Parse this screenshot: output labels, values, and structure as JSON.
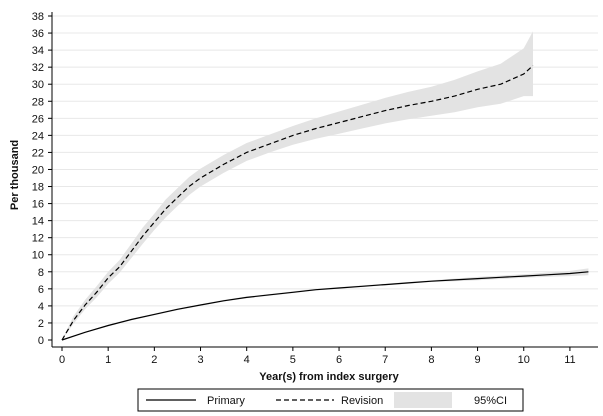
{
  "chart_data": {
    "type": "line",
    "xlabel": "Year(s) from index surgery",
    "ylabel": "Per thousand",
    "xlim": [
      0,
      11.5
    ],
    "ylim": [
      0,
      38
    ],
    "x_ticks": [
      0,
      1,
      2,
      3,
      4,
      5,
      6,
      7,
      8,
      9,
      10,
      11
    ],
    "y_ticks": [
      0,
      2,
      4,
      6,
      8,
      10,
      12,
      14,
      16,
      18,
      20,
      22,
      24,
      26,
      28,
      30,
      32,
      34,
      36,
      38
    ],
    "grid": "horizontal",
    "legend_position": "bottom",
    "series": [
      {
        "name": "Primary",
        "style": "solid",
        "color": "#000000",
        "x": [
          0,
          0.5,
          1,
          1.5,
          2,
          2.5,
          3,
          3.5,
          4,
          4.5,
          5,
          5.5,
          6,
          6.5,
          7,
          7.5,
          8,
          8.5,
          9,
          9.5,
          10,
          10.5,
          11,
          11.4
        ],
        "y": [
          0,
          0.9,
          1.7,
          2.4,
          3.0,
          3.6,
          4.1,
          4.6,
          5.0,
          5.3,
          5.6,
          5.9,
          6.1,
          6.3,
          6.5,
          6.7,
          6.9,
          7.05,
          7.2,
          7.35,
          7.5,
          7.65,
          7.8,
          8.0
        ],
        "ci_low": [
          0,
          0.85,
          1.6,
          2.3,
          2.9,
          3.5,
          4.0,
          4.5,
          4.9,
          5.2,
          5.5,
          5.8,
          6.0,
          6.2,
          6.4,
          6.6,
          6.8,
          6.9,
          7.0,
          7.15,
          7.3,
          7.4,
          7.5,
          7.6
        ],
        "ci_high": [
          0,
          0.95,
          1.8,
          2.5,
          3.1,
          3.7,
          4.2,
          4.7,
          5.1,
          5.4,
          5.7,
          6.0,
          6.2,
          6.4,
          6.6,
          6.8,
          7.0,
          7.2,
          7.4,
          7.55,
          7.7,
          7.9,
          8.1,
          8.4
        ]
      },
      {
        "name": "Revision",
        "style": "dashed",
        "color": "#000000",
        "x": [
          0,
          0.25,
          0.5,
          0.75,
          1,
          1.25,
          1.5,
          1.75,
          2,
          2.25,
          2.5,
          2.75,
          3,
          3.5,
          4,
          4.5,
          5,
          5.5,
          6,
          6.5,
          7,
          7.5,
          8,
          8.5,
          9,
          9.5,
          10,
          10.2
        ],
        "y": [
          0,
          2.3,
          4.1,
          5.6,
          7.3,
          8.6,
          10.4,
          12.2,
          13.8,
          15.4,
          16.7,
          18.0,
          19.0,
          20.6,
          22.0,
          23.0,
          24.0,
          24.8,
          25.5,
          26.2,
          26.9,
          27.5,
          28.0,
          28.6,
          29.4,
          30.0,
          31.2,
          32.2
        ],
        "ci_low": [
          0,
          1.9,
          3.6,
          5.0,
          6.6,
          7.9,
          9.6,
          11.3,
          12.9,
          14.4,
          15.7,
          17.0,
          18.0,
          19.6,
          21.0,
          22.0,
          22.9,
          23.6,
          24.2,
          24.8,
          25.4,
          25.9,
          26.3,
          26.7,
          27.3,
          27.7,
          28.6,
          28.6
        ],
        "ci_high": [
          0,
          2.8,
          4.7,
          6.3,
          8.0,
          9.4,
          11.3,
          13.2,
          14.8,
          16.5,
          17.8,
          19.1,
          20.1,
          21.7,
          23.1,
          24.1,
          25.1,
          26.0,
          26.8,
          27.6,
          28.4,
          29.1,
          29.7,
          30.5,
          31.5,
          32.4,
          34.2,
          36.2
        ]
      }
    ],
    "legend": [
      {
        "label": "Primary",
        "kind": "solid"
      },
      {
        "label": "Revision",
        "kind": "dashed"
      },
      {
        "label": "95%CI",
        "kind": "band"
      }
    ],
    "colors": {
      "band": "#e3e3e3",
      "grid": "#e8e8e8",
      "line": "#000000"
    }
  }
}
